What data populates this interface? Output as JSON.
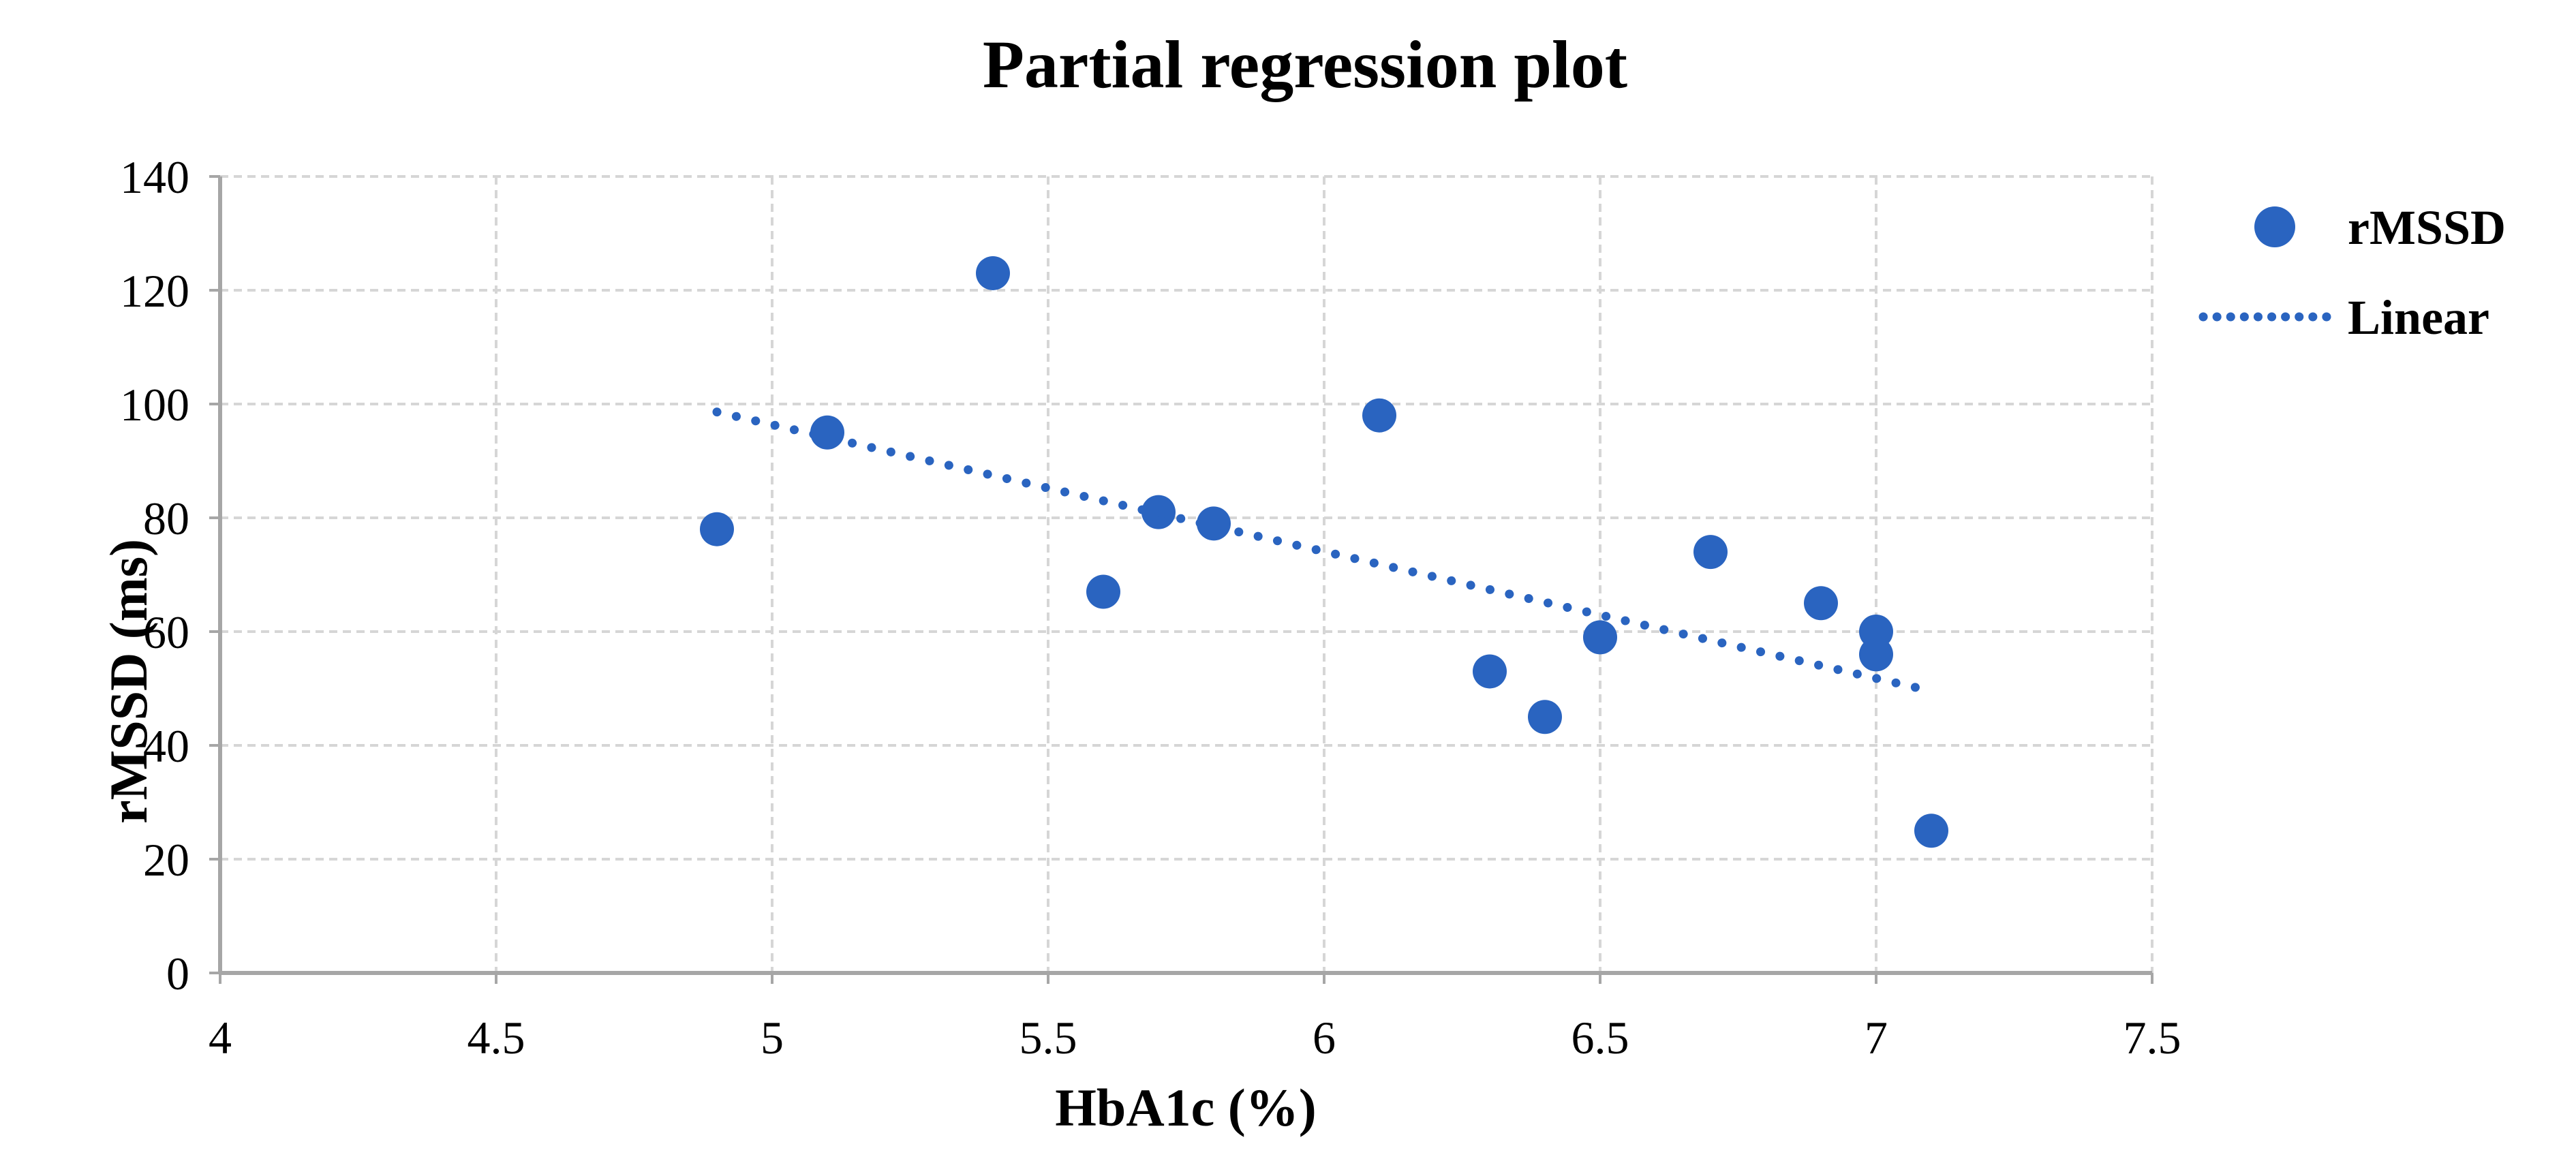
{
  "title": "Partial regression plot",
  "axes": {
    "x_title": "HbA1c (%)",
    "y_title": "rMSSD (ms)"
  },
  "legend": {
    "position": "right",
    "items": [
      {
        "label": "rMSSD",
        "marker": "filled-circle"
      },
      {
        "label": "Linear",
        "marker": "dotted-line"
      }
    ]
  },
  "chart_data": {
    "type": "scatter",
    "title": "Partial regression plot",
    "xlabel": "HbA1c (%)",
    "ylabel": "rMSSD (ms)",
    "xlim": [
      4,
      7.5
    ],
    "ylim": [
      0,
      140
    ],
    "x_ticks": [
      "4",
      "4.5",
      "5",
      "5.5",
      "6",
      "6.5",
      "7",
      "7.5"
    ],
    "x_tick_values": [
      4,
      4.5,
      5,
      5.5,
      6,
      6.5,
      7,
      7.5
    ],
    "y_ticks": [
      "0",
      "20",
      "40",
      "60",
      "80",
      "100",
      "120",
      "140"
    ],
    "y_tick_values": [
      0,
      20,
      40,
      60,
      80,
      100,
      120,
      140
    ],
    "grid": true,
    "legend_position": "right",
    "series": [
      {
        "name": "rMSSD",
        "type": "scatter",
        "points": [
          [
            4.9,
            78
          ],
          [
            5.1,
            95
          ],
          [
            5.4,
            123
          ],
          [
            5.6,
            67
          ],
          [
            5.7,
            81
          ],
          [
            5.8,
            79
          ],
          [
            6.1,
            98
          ],
          [
            6.3,
            53
          ],
          [
            6.4,
            45
          ],
          [
            6.5,
            59
          ],
          [
            6.7,
            74
          ],
          [
            6.9,
            65
          ],
          [
            7.0,
            60
          ],
          [
            7.0,
            56
          ],
          [
            7.1,
            25
          ]
        ]
      },
      {
        "name": "Linear",
        "type": "trendline",
        "style": "dotted",
        "endpoints": [
          [
            4.9,
            98.6
          ],
          [
            7.08,
            50
          ]
        ]
      }
    ],
    "colors": {
      "marker": "#2A64C0",
      "trendline": "#2A64C0",
      "gridline": "#D6D6D6",
      "axis_line": "#A6A6A6",
      "text": "#000000"
    }
  }
}
